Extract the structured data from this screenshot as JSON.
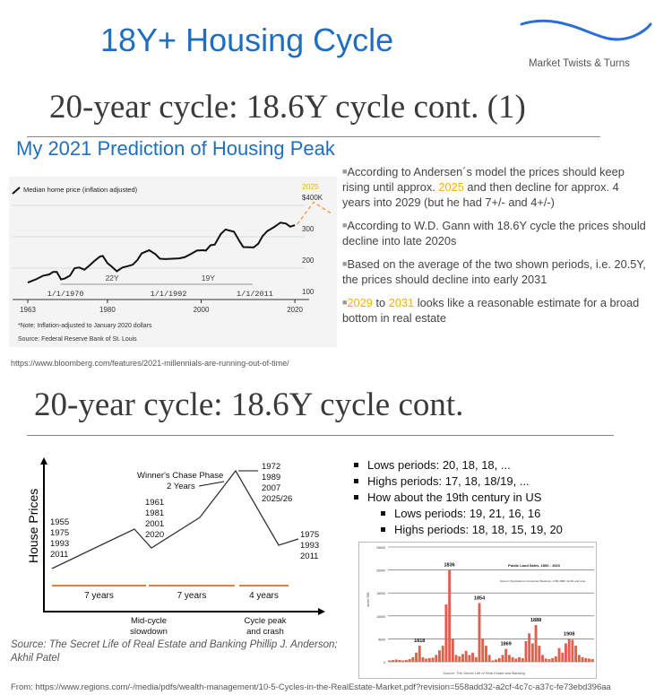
{
  "title": "18Y+ Housing Cycle",
  "logo": {
    "text": "Market Twists & Turns",
    "wave_color": "#2a6fd6"
  },
  "heading1": "20-year cycle: 18.6Y cycle cont. (1)",
  "subtitle": "My 2021 Prediction of Housing Peak",
  "bullets1": [
    {
      "parts": [
        {
          "t": "According to Andersen´s model the prices should keep rising until approx. "
        },
        {
          "t": "2025",
          "hl": true
        },
        {
          "t": " and then decline for approx. 4 years into 2029 (but he had 7+/- and 4+/-)"
        }
      ]
    },
    {
      "parts": [
        {
          "t": "According to W.D. Gann with 18.6Y cycle the prices should decline into late 2020s"
        }
      ]
    },
    {
      "parts": [
        {
          "t": "Based on the average of the two shown periods, i.e. 20.5Y, the prices should decline into early 2031"
        }
      ]
    },
    {
      "parts": [
        {
          "t": "2029",
          "hl": true
        },
        {
          "t": " to "
        },
        {
          "t": "2031",
          "hl": true
        },
        {
          "t": " looks like a reasonable estimate for a broad bottom in real estate"
        }
      ]
    }
  ],
  "url1": "https://www.bloomberg.com/features/2021-millennials-are-running-out-of-time/",
  "heading2": "20-year cycle: 18.6Y cycle cont.",
  "bullets2": [
    {
      "text": "Lows periods: 20, 18, 18, ...",
      "level": 1
    },
    {
      "text": "Highs periods: 17, 18, 18/19, ...",
      "level": 1
    },
    {
      "text": "How about the 19th century  in US",
      "level": 1
    },
    {
      "text": "Lows periods: 19, 21, 16, 16",
      "level": 2
    },
    {
      "text": "Highs periods: 18, 18, 15, 19, 20",
      "level": 2
    }
  ],
  "diagram": {
    "ylabel": "House Prices",
    "winners_phase": "Winner's Chase Phase",
    "two_years": "2 Years",
    "start_years": [
      "1955",
      "1975",
      "1993",
      "2011"
    ],
    "mid_years": [
      "1961",
      "1981",
      "2001",
      "2020"
    ],
    "peak_years": [
      "1972",
      "1989",
      "2007",
      "2025/26"
    ],
    "end_years": [
      "1975",
      "1993",
      "2011"
    ],
    "spans": [
      "7 years",
      "7 years",
      "4 years"
    ],
    "mid_label": [
      "Mid-cycle",
      "slowdown"
    ],
    "peak_label": [
      "Cycle peak",
      "and crash"
    ],
    "source": "Source: The Secret Life of Real Estate and Banking Phillip J. Anderson; Akhil Patel"
  },
  "footer_url": "From: https://www.regions.com/-/media/pdfs/wealth-management/10-5-Cycles-in-the-RealEstate-Market.pdf?revision=558add32-a2cf-4c7c-a37c-fe73ebd396aa",
  "chart_data": [
    {
      "type": "line",
      "legend": "Median home price (inflation adjusted)",
      "xticks": [
        "1963",
        "1980",
        "2000",
        "2020"
      ],
      "yticks": [
        "100",
        "200",
        "300",
        "$400K"
      ],
      "ylim": [
        100,
        400
      ],
      "xlim": [
        1963,
        2030
      ],
      "series": [
        {
          "name": "Median home price (inflation adjusted)",
          "color": "#111111",
          "points": [
            [
              1963,
              154
            ],
            [
              1964.7,
              164
            ],
            [
              1966.3,
              176
            ],
            [
              1967.6,
              180
            ],
            [
              1968.4,
              188
            ],
            [
              1969.2,
              188
            ],
            [
              1970.1,
              164
            ],
            [
              1970.9,
              167
            ],
            [
              1972,
              176
            ],
            [
              1973,
              200
            ],
            [
              1974,
              202
            ],
            [
              1975.1,
              195
            ],
            [
              1976.2,
              209
            ],
            [
              1977.3,
              224
            ],
            [
              1978.4,
              237
            ],
            [
              1979,
              239
            ],
            [
              1980,
              216
            ],
            [
              1980.9,
              205
            ],
            [
              1982,
              190
            ],
            [
              1983.2,
              202
            ],
            [
              1984.5,
              207
            ],
            [
              1985.4,
              211
            ],
            [
              1986.4,
              226
            ],
            [
              1987.3,
              247
            ],
            [
              1988.9,
              257
            ],
            [
              1990.2,
              245
            ],
            [
              1991.2,
              230
            ],
            [
              1992.4,
              229
            ],
            [
              1995.3,
              231
            ],
            [
              1996.5,
              235
            ],
            [
              1997.8,
              245
            ],
            [
              1999.1,
              256
            ],
            [
              2000.4,
              257
            ],
            [
              2001,
              256
            ],
            [
              2002,
              273
            ],
            [
              2002.9,
              275
            ],
            [
              2004.2,
              309
            ],
            [
              2005.2,
              323
            ],
            [
              2007,
              316
            ],
            [
              2008.3,
              283
            ],
            [
              2009,
              267
            ],
            [
              2011.2,
              266
            ],
            [
              2012.2,
              278
            ],
            [
              2013.1,
              302
            ],
            [
              2014.1,
              318
            ],
            [
              2015.7,
              332
            ],
            [
              2016.9,
              345
            ],
            [
              2018.1,
              342
            ],
            [
              2019,
              332
            ],
            [
              2020,
              337
            ]
          ]
        }
      ],
      "projection": {
        "color": "#f0a050",
        "points": [
          [
            2020.5,
            340
          ],
          [
            2024,
            410
          ],
          [
            2028,
            372
          ]
        ]
      },
      "peak_label": "2025",
      "peak_color": "#f0b400",
      "annotations": [
        {
          "label": "22Y",
          "from": "1/1/1970",
          "to": "1/1/1992"
        },
        {
          "label": "19Y",
          "from": "1/1/1992",
          "to": "1/1/2011"
        }
      ],
      "note": "*Note: Inflation-adjusted to January 2020 dollars",
      "source": "Source: Federal Reserve Bank of St. Louis"
    },
    {
      "type": "bar",
      "title": "Public Land Sales, 1800 - 1923",
      "ylabel": "acres '000",
      "yticks": [
        "0",
        "5000",
        "10000",
        "15000",
        "20000",
        "25000"
      ],
      "ylim": [
        0,
        25000
      ],
      "color": "#e06050",
      "x": [
        1800,
        1802,
        1804,
        1806,
        1808,
        1810,
        1812,
        1814,
        1816,
        1818,
        1820,
        1822,
        1824,
        1826,
        1828,
        1830,
        1832,
        1834,
        1836,
        1838,
        1840,
        1842,
        1844,
        1846,
        1848,
        1850,
        1852,
        1854,
        1856,
        1858,
        1860,
        1862,
        1864,
        1866,
        1868,
        1870,
        1872,
        1874,
        1876,
        1878,
        1880,
        1882,
        1884,
        1886,
        1888,
        1890,
        1892,
        1894,
        1896,
        1898,
        1900,
        1902,
        1904,
        1906,
        1908,
        1910,
        1912,
        1914,
        1916,
        1918,
        1920,
        1922
      ],
      "values": [
        300,
        400,
        500,
        400,
        300,
        400,
        600,
        1000,
        2000,
        3500,
        1000,
        700,
        800,
        900,
        1500,
        2500,
        3500,
        12500,
        20000,
        5000,
        1500,
        1200,
        1700,
        2400,
        1500,
        2000,
        1000,
        12800,
        5000,
        3500,
        1500,
        300,
        500,
        800,
        1500,
        2800,
        1500,
        1000,
        700,
        1000,
        800,
        4500,
        6200,
        4000,
        8000,
        3500,
        1500,
        700,
        600,
        800,
        1200,
        3000,
        2000,
        4000,
        5000,
        4800,
        3500,
        1500,
        1000,
        800,
        700,
        600
      ],
      "peak_labels": [
        {
          "year": "1818",
          "value": 3500
        },
        {
          "year": "1836",
          "value": 20000
        },
        {
          "year": "1854",
          "value": 12800
        },
        {
          "year": "1869",
          "value": 2800
        },
        {
          "year": "1888",
          "value": 8000
        },
        {
          "year": "1908",
          "value": 5000
        }
      ],
      "note": "Source: Fluctuations in American Business, 1790-1860, Smith and Cole...",
      "source": "Source: The Secret Life of Real Estate and Banking"
    }
  ]
}
